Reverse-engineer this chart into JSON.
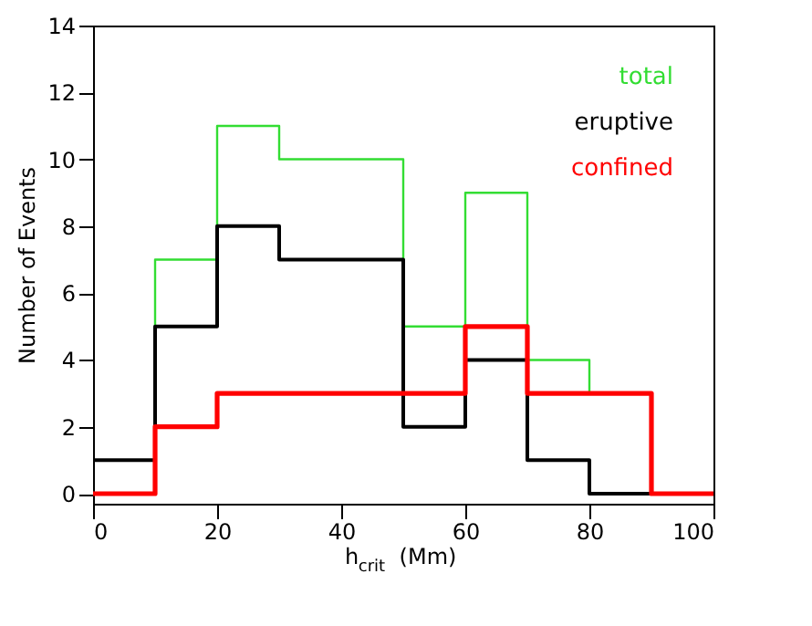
{
  "chart_data": {
    "type": "histogram",
    "xlabel": "h$_{crit}$ (Mm)",
    "ylabel": "Number of Events",
    "bins": [
      0,
      10,
      20,
      30,
      40,
      50,
      60,
      70,
      80,
      90,
      100
    ],
    "series": [
      {
        "name": "total",
        "color": "#33dd33",
        "values": [
          1,
          7,
          11,
          10,
          10,
          5,
          9,
          4,
          3,
          0
        ]
      },
      {
        "name": "eruptive",
        "color": "#000000",
        "values": [
          1,
          5,
          8,
          7,
          7,
          2,
          4,
          1,
          0,
          0
        ]
      },
      {
        "name": "confined",
        "color": "#ff0000",
        "values": [
          0,
          2,
          3,
          3,
          3,
          3,
          5,
          3,
          3,
          0
        ]
      }
    ],
    "xlim": [
      0,
      100
    ],
    "xticks": [
      0,
      20,
      40,
      60,
      80,
      100
    ],
    "ylim": [
      -0.3,
      14
    ],
    "yticks": [
      0,
      2,
      4,
      6,
      8,
      10,
      12,
      14
    ],
    "grid": false,
    "legend": "top right"
  }
}
